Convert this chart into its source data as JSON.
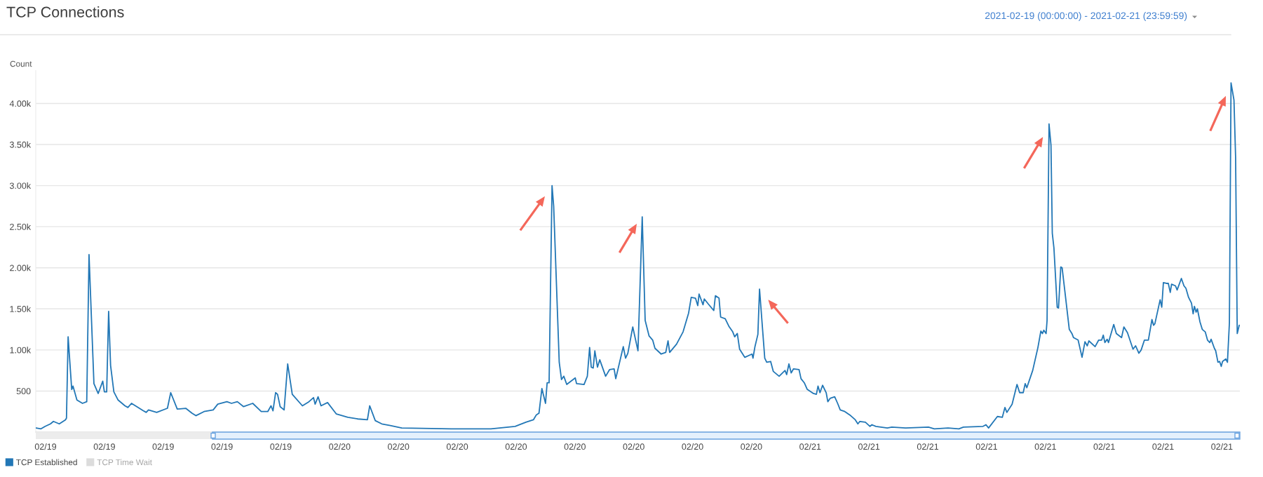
{
  "chart_data": {
    "type": "line",
    "title": "TCP Connections",
    "subtitle": "2021-02-19 (00:00:00) - 2021-02-21 (23:59:59)",
    "ylabel": "Count",
    "x": [
      "2021-02-19T08:31",
      "2021-02-19T08:46",
      "2021-02-19T08:59",
      "2021-02-19T09:15",
      "2021-02-19T09:24",
      "2021-02-19T09:42",
      "2021-02-19T10:01",
      "2021-02-19T10:04",
      "2021-02-19T10:09",
      "2021-02-19T10:20",
      "2021-02-19T10:24",
      "2021-02-19T10:36",
      "2021-02-19T10:53",
      "2021-02-19T11:06",
      "2021-02-19T11:13",
      "2021-02-19T11:28",
      "2021-02-19T11:41",
      "2021-02-19T11:55",
      "2021-02-19T12:00",
      "2021-02-19T12:07",
      "2021-02-19T12:13",
      "2021-02-19T12:19",
      "2021-02-19T12:29",
      "2021-02-19T12:42",
      "2021-02-19T13:03",
      "2021-02-19T13:12",
      "2021-02-19T13:23",
      "2021-02-19T13:59",
      "2021-02-19T14:08",
      "2021-02-19T14:15",
      "2021-02-19T14:40",
      "2021-02-19T15:13",
      "2021-02-19T15:23",
      "2021-02-19T15:43",
      "2021-02-19T16:09",
      "2021-02-19T16:28",
      "2021-02-19T16:40",
      "2021-02-19T17:05",
      "2021-02-19T17:33",
      "2021-02-19T17:47",
      "2021-02-19T18:15",
      "2021-02-19T18:29",
      "2021-02-19T18:47",
      "2021-02-19T19:06",
      "2021-02-19T19:34",
      "2021-02-19T20:00",
      "2021-02-19T20:20",
      "2021-02-19T20:30",
      "2021-02-19T20:36",
      "2021-02-19T20:44",
      "2021-02-19T20:50",
      "2021-02-19T20:58",
      "2021-02-19T21:10",
      "2021-02-19T21:21",
      "2021-02-19T21:35",
      "2021-02-19T22:06",
      "2021-02-19T22:26",
      "2021-02-19T22:40",
      "2021-02-19T22:45",
      "2021-02-19T22:54",
      "2021-02-19T23:03",
      "2021-02-19T23:23",
      "2021-02-19T23:50",
      "2021-02-20T00:25",
      "2021-02-20T00:56",
      "2021-02-20T01:25",
      "2021-02-20T01:32",
      "2021-02-20T01:49",
      "2021-02-20T02:09",
      "2021-02-20T02:35",
      "2021-02-20T03:10",
      "2021-02-20T05:42",
      "2021-02-20T07:43",
      "2021-02-20T08:57",
      "2021-02-20T09:30",
      "2021-02-20T09:53",
      "2021-02-20T10:02",
      "2021-02-20T10:10",
      "2021-02-20T10:19",
      "2021-02-20T10:30",
      "2021-02-20T10:35",
      "2021-02-20T10:41",
      "2021-02-20T10:50",
      "2021-02-20T10:55",
      "2021-02-20T11:12",
      "2021-02-20T11:19",
      "2021-02-20T11:26",
      "2021-02-20T11:35",
      "2021-02-20T12:01",
      "2021-02-20T12:05",
      "2021-02-20T12:28",
      "2021-02-20T12:38",
      "2021-02-20T12:45",
      "2021-02-20T12:50",
      "2021-02-20T12:56",
      "2021-02-20T13:01",
      "2021-02-20T13:09",
      "2021-02-20T13:16",
      "2021-02-20T13:34",
      "2021-02-20T13:46",
      "2021-02-20T14:00",
      "2021-02-20T14:05",
      "2021-02-20T14:28",
      "2021-02-20T14:35",
      "2021-02-20T14:42",
      "2021-02-20T14:57",
      "2021-02-20T15:13",
      "2021-02-20T15:26",
      "2021-02-20T15:35",
      "2021-02-20T15:47",
      "2021-02-20T15:58",
      "2021-02-20T16:05",
      "2021-02-20T16:24",
      "2021-02-20T16:38",
      "2021-02-20T16:45",
      "2021-02-20T16:50",
      "2021-02-20T17:11",
      "2021-02-20T17:31",
      "2021-02-20T17:48",
      "2021-02-20T17:56",
      "2021-02-20T18:09",
      "2021-02-20T18:16",
      "2021-02-20T18:20",
      "2021-02-20T18:32",
      "2021-02-20T18:36",
      "2021-02-20T18:48",
      "2021-02-20T19:05",
      "2021-02-20T19:10",
      "2021-02-20T19:21",
      "2021-02-20T19:26",
      "2021-02-20T19:40",
      "2021-02-20T19:51",
      "2021-02-20T20:03",
      "2021-02-20T20:09",
      "2021-02-20T20:17",
      "2021-02-20T20:24",
      "2021-02-20T20:40",
      "2021-02-20T21:02",
      "2021-02-20T21:05",
      "2021-02-20T21:11",
      "2021-02-20T21:20",
      "2021-02-20T21:25",
      "2021-02-20T21:41",
      "2021-02-20T21:47",
      "2021-02-20T21:59",
      "2021-02-20T22:07",
      "2021-02-20T22:25",
      "2021-02-20T22:43",
      "2021-02-20T22:48",
      "2021-02-20T22:55",
      "2021-02-20T23:02",
      "2021-02-20T23:09",
      "2021-02-20T23:26",
      "2021-02-20T23:32",
      "2021-02-20T23:42",
      "2021-02-20T23:51",
      "2021-02-21T00:10",
      "2021-02-21T00:19",
      "2021-02-21T00:24",
      "2021-02-21T00:30",
      "2021-02-21T00:38",
      "2021-02-21T00:49",
      "2021-02-21T00:54",
      "2021-02-21T01:01",
      "2021-02-21T01:15",
      "2021-02-21T01:24",
      "2021-02-21T01:32",
      "2021-02-21T01:46",
      "2021-02-21T02:04",
      "2021-02-21T02:18",
      "2021-02-21T02:26",
      "2021-02-21T02:32",
      "2021-02-21T02:49",
      "2021-02-21T03:03",
      "2021-02-21T03:09",
      "2021-02-21T03:21",
      "2021-02-21T03:56",
      "2021-02-21T04:10",
      "2021-02-21T04:52",
      "2021-02-21T06:02",
      "2021-02-21T06:20",
      "2021-02-21T07:02",
      "2021-02-21T07:35",
      "2021-02-21T07:49",
      "2021-02-21T08:49",
      "2021-02-21T08:58",
      "2021-02-21T09:06",
      "2021-02-21T09:33",
      "2021-02-21T09:48",
      "2021-02-21T09:56",
      "2021-02-21T10:02",
      "2021-02-21T10:18",
      "2021-02-21T10:33",
      "2021-02-21T10:41",
      "2021-02-21T10:52",
      "2021-02-21T10:58",
      "2021-02-21T11:03",
      "2021-02-21T11:21",
      "2021-02-21T11:37",
      "2021-02-21T11:46",
      "2021-02-21T11:51",
      "2021-02-21T11:55",
      "2021-02-21T12:02",
      "2021-02-21T12:05",
      "2021-02-21T12:11",
      "2021-02-21T12:17",
      "2021-02-21T12:21",
      "2021-02-21T12:26",
      "2021-02-21T12:36",
      "2021-02-21T12:40",
      "2021-02-21T12:47",
      "2021-02-21T12:51",
      "2021-02-21T12:59",
      "2021-02-21T13:13",
      "2021-02-21T13:21",
      "2021-02-21T13:26",
      "2021-02-21T13:40",
      "2021-02-21T13:52",
      "2021-02-21T14:01",
      "2021-02-21T14:08",
      "2021-02-21T14:13",
      "2021-02-21T14:32",
      "2021-02-21T14:43",
      "2021-02-21T14:52",
      "2021-02-21T14:57",
      "2021-02-21T15:02",
      "2021-02-21T15:09",
      "2021-02-21T15:13",
      "2021-02-21T15:29",
      "2021-02-21T15:37",
      "2021-02-21T15:53",
      "2021-02-21T16:00",
      "2021-02-21T16:11",
      "2021-02-21T16:28",
      "2021-02-21T16:36",
      "2021-02-21T16:46",
      "2021-02-21T16:53",
      "2021-02-21T17:03",
      "2021-02-21T17:15",
      "2021-02-21T17:26",
      "2021-02-21T17:31",
      "2021-02-21T17:35",
      "2021-02-21T17:51",
      "2021-02-21T17:56",
      "2021-02-21T18:01",
      "2021-02-21T18:10",
      "2021-02-21T18:16",
      "2021-02-21T18:22",
      "2021-02-21T18:26",
      "2021-02-21T18:38",
      "2021-02-21T18:43",
      "2021-02-21T18:56",
      "2021-02-21T19:04",
      "2021-02-21T19:10",
      "2021-02-21T19:18",
      "2021-02-21T19:27",
      "2021-02-21T19:32",
      "2021-02-21T19:36",
      "2021-02-21T19:41",
      "2021-02-21T19:45",
      "2021-02-21T19:53",
      "2021-02-21T20:00",
      "2021-02-21T20:09",
      "2021-02-21T20:16",
      "2021-02-21T20:23",
      "2021-02-21T20:27",
      "2021-02-21T20:37",
      "2021-02-21T20:41",
      "2021-02-21T20:48",
      "2021-02-21T20:53",
      "2021-02-21T20:58",
      "2021-02-21T21:02",
      "2021-02-21T21:12",
      "2021-02-21T21:17",
      "2021-02-21T21:23",
      "2021-02-21T21:28",
      "2021-02-21T21:37",
      "2021-02-21T21:42",
      "2021-02-21T21:47",
      "2021-02-21T21:53"
    ],
    "series": [
      {
        "name": "TCP Established",
        "color": "#2277b6",
        "values": [
          50,
          40,
          70,
          100,
          130,
          100,
          150,
          170,
          1160,
          520,
          560,
          390,
          350,
          370,
          2160,
          590,
          470,
          620,
          490,
          490,
          1470,
          810,
          490,
          390,
          320,
          300,
          350,
          260,
          240,
          270,
          240,
          290,
          480,
          280,
          290,
          230,
          200,
          250,
          270,
          340,
          370,
          350,
          370,
          310,
          350,
          250,
          250,
          320,
          260,
          480,
          460,
          310,
          270,
          830,
          460,
          320,
          370,
          420,
          340,
          430,
          320,
          360,
          220,
          180,
          160,
          150,
          320,
          140,
          100,
          80,
          50,
          40,
          40,
          70,
          120,
          150,
          210,
          230,
          530,
          350,
          600,
          600,
          3000,
          2750,
          850,
          640,
          680,
          580,
          660,
          590,
          580,
          680,
          1030,
          790,
          780,
          990,
          790,
          880,
          680,
          760,
          770,
          650,
          1040,
          900,
          960,
          1280,
          990,
          2620,
          1360,
          1170,
          1120,
          1020,
          950,
          970,
          1110,
          970,
          1070,
          1220,
          1450,
          1640,
          1630,
          1540,
          1680,
          1550,
          1620,
          1560,
          1480,
          1660,
          1630,
          1400,
          1380,
          1290,
          1220,
          1160,
          1200,
          1010,
          910,
          950,
          900,
          1040,
          1190,
          1740,
          900,
          850,
          860,
          740,
          680,
          750,
          700,
          830,
          720,
          770,
          760,
          650,
          600,
          520,
          470,
          460,
          560,
          480,
          570,
          480,
          370,
          410,
          430,
          350,
          270,
          250,
          200,
          150,
          100,
          130,
          120,
          70,
          90,
          70,
          50,
          60,
          50,
          60,
          40,
          50,
          40,
          60,
          70,
          90,
          50,
          190,
          180,
          300,
          240,
          340,
          580,
          480,
          480,
          590,
          540,
          750,
          1030,
          1230,
          1200,
          1240,
          1200,
          1360,
          3750,
          3490,
          2420,
          2240,
          1520,
          1510,
          2010,
          2000,
          1730,
          1250,
          1200,
          1150,
          1120,
          910,
          1100,
          1050,
          1110,
          1040,
          1120,
          1120,
          1180,
          1090,
          1130,
          1090,
          1310,
          1200,
          1150,
          1280,
          1210,
          1010,
          1050,
          960,
          1000,
          1120,
          1120,
          1370,
          1300,
          1320,
          1610,
          1520,
          1820,
          1810,
          1810,
          1700,
          1800,
          1780,
          1730,
          1870,
          1780,
          1750,
          1640,
          1570,
          1440,
          1530,
          1460,
          1500,
          1340,
          1250,
          1220,
          1120,
          1090,
          1130,
          1020,
          990,
          850,
          860,
          800,
          860,
          890,
          850,
          1330,
          4250,
          4040,
          3340,
          1200,
          1300
        ]
      },
      {
        "name": "TCP Time Wait",
        "color": "#dcdcdc",
        "values": [
          null,
          null,
          null,
          null,
          null,
          null,
          null,
          null,
          null,
          null,
          null,
          null,
          null,
          null,
          null,
          null,
          null,
          null,
          null,
          null,
          null,
          null,
          null,
          null,
          null,
          null,
          null,
          null,
          null,
          null,
          null,
          null,
          null,
          null,
          null,
          null,
          null,
          null,
          null,
          null,
          null,
          null,
          null,
          null,
          null,
          null,
          null,
          null,
          null,
          null,
          null,
          null,
          null,
          null,
          null,
          null,
          null,
          null,
          null,
          null,
          null,
          null,
          null,
          null,
          null,
          null,
          null,
          null,
          null,
          null,
          null,
          null,
          null,
          null,
          null,
          null,
          null,
          null,
          null,
          null,
          null,
          null,
          null,
          null,
          null,
          null,
          null,
          null,
          null,
          null,
          null,
          null,
          null,
          null,
          null,
          null,
          null,
          null,
          null,
          null,
          null,
          null,
          null,
          null,
          null,
          null,
          null,
          null,
          null,
          null,
          null,
          null,
          null,
          null,
          null,
          null,
          null,
          null,
          null,
          null,
          null,
          null,
          null,
          null,
          null,
          null,
          null,
          null,
          null,
          null,
          null,
          null,
          null,
          null,
          null,
          null,
          null,
          null,
          null,
          null,
          null,
          null,
          null,
          null,
          null,
          null,
          null,
          null,
          null,
          null,
          null,
          null,
          null,
          null,
          null,
          null,
          null,
          null,
          null,
          null,
          null,
          null,
          null,
          null,
          null,
          null,
          null,
          null,
          null,
          null,
          null,
          null,
          null,
          null,
          null,
          null,
          null,
          null,
          null,
          null,
          null,
          null,
          null,
          null,
          null,
          null,
          null,
          null,
          null,
          null,
          null,
          null,
          null,
          null,
          null,
          null,
          null,
          null,
          null,
          null,
          null,
          null,
          null,
          null,
          null,
          null,
          null,
          null,
          null,
          null,
          null,
          null,
          null,
          null,
          null,
          null,
          null,
          null,
          null,
          null,
          null,
          null,
          null,
          null,
          null,
          null,
          null,
          null,
          null,
          null,
          null,
          null,
          null,
          null,
          null,
          null,
          null,
          null,
          null,
          null,
          null,
          null,
          null,
          null,
          null,
          null,
          null,
          null,
          null,
          null,
          null,
          null,
          null,
          null,
          null,
          null,
          null,
          null,
          null,
          null,
          null,
          null,
          null,
          null,
          null,
          null,
          null,
          null,
          null,
          null,
          null,
          null,
          null,
          null,
          null,
          null,
          null,
          null,
          null,
          null
        ]
      }
    ],
    "xlim": [
      "2021-02-19T08:30",
      "2021-02-21T21:55"
    ],
    "xticks": [
      {
        "value": "2021-02-19T09:00",
        "label": "02/19"
      },
      {
        "value": "2021-02-19T12:00",
        "label": "02/19"
      },
      {
        "value": "2021-02-19T15:00",
        "label": "02/19"
      },
      {
        "value": "2021-02-19T18:00",
        "label": "02/19"
      },
      {
        "value": "2021-02-19T21:00",
        "label": "02/19"
      },
      {
        "value": "2021-02-20T00:00",
        "label": "02/20"
      },
      {
        "value": "2021-02-20T03:00",
        "label": "02/20"
      },
      {
        "value": "2021-02-20T06:00",
        "label": "02/20"
      },
      {
        "value": "2021-02-20T09:00",
        "label": "02/20"
      },
      {
        "value": "2021-02-20T12:00",
        "label": "02/20"
      },
      {
        "value": "2021-02-20T15:00",
        "label": "02/20"
      },
      {
        "value": "2021-02-20T18:00",
        "label": "02/20"
      },
      {
        "value": "2021-02-20T21:00",
        "label": "02/20"
      },
      {
        "value": "2021-02-21T00:00",
        "label": "02/21"
      },
      {
        "value": "2021-02-21T03:00",
        "label": "02/21"
      },
      {
        "value": "2021-02-21T06:00",
        "label": "02/21"
      },
      {
        "value": "2021-02-21T09:00",
        "label": "02/21"
      },
      {
        "value": "2021-02-21T12:00",
        "label": "02/21"
      },
      {
        "value": "2021-02-21T15:00",
        "label": "02/21"
      },
      {
        "value": "2021-02-21T18:00",
        "label": "02/21"
      },
      {
        "value": "2021-02-21T21:00",
        "label": "02/21"
      }
    ],
    "ylim": [
      0,
      4400
    ],
    "yticks": [
      500,
      {
        "value": 1000,
        "label": "1.00k"
      },
      {
        "value": 1500,
        "label": "1.50k"
      },
      {
        "value": 2000,
        "label": "2.00k"
      },
      {
        "value": 2500,
        "label": "2.50k"
      },
      {
        "value": 3000,
        "label": "3.00k"
      },
      {
        "value": 3500,
        "label": "3.50k"
      },
      {
        "value": 4000,
        "label": "4.00k"
      }
    ],
    "grid": "y",
    "legend": "bottom left"
  }
}
